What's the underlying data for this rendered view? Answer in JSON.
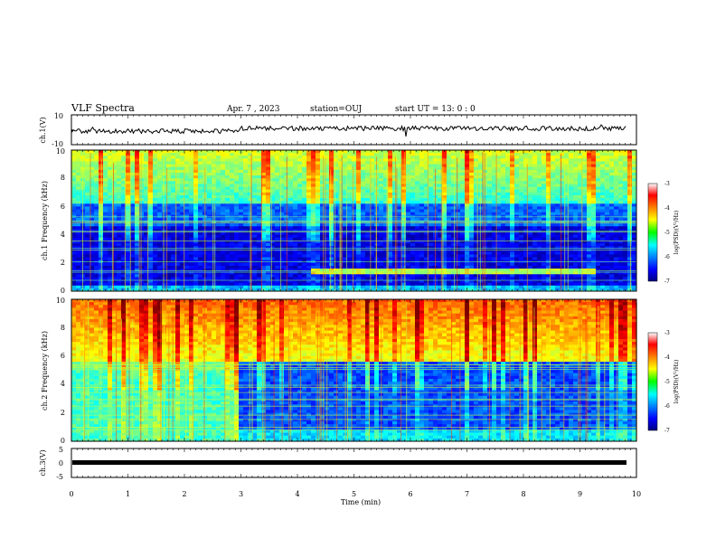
{
  "header": {
    "title": "VLF Spectra",
    "date": "Apr. 7 , 2023",
    "station": "station=OUJ",
    "start": "start UT = 13: 0 : 0"
  },
  "chart_data": [
    {
      "type": "line",
      "panel": "ch1-waveform",
      "ylabel": "ch.1(V)",
      "ylim": [
        -10,
        10
      ],
      "yticks": [
        "10",
        "-10"
      ],
      "xlim": [
        0,
        10
      ],
      "series": [
        {
          "x": [
            0,
            10
          ],
          "values": [
            0,
            0
          ]
        }
      ]
    },
    {
      "type": "heatmap",
      "panel": "ch1-spectrogram",
      "ylabel": "ch.1 Frequency (kHz)",
      "ylim": [
        0,
        10
      ],
      "yticks": [
        "0",
        "2",
        "4",
        "6",
        "8",
        "10"
      ],
      "xlim": [
        0,
        10
      ],
      "colorbar": {
        "label": "log(PSD)(V²/Hz)",
        "range": [
          -7,
          -3
        ],
        "ticks": [
          "-3",
          "-4",
          "-5",
          "-6",
          "-7"
        ]
      }
    },
    {
      "type": "heatmap",
      "panel": "ch2-spectrogram",
      "ylabel": "ch.2 Frequency (kHz)",
      "ylim": [
        0,
        10
      ],
      "yticks": [
        "0",
        "2",
        "4",
        "6",
        "8",
        "10"
      ],
      "xlim": [
        0,
        10
      ],
      "colorbar": {
        "label": "log(PSD)(V²/Hz)",
        "range": [
          -7,
          -3
        ],
        "ticks": [
          "-3",
          "-4",
          "-5",
          "-6",
          "-7"
        ]
      }
    },
    {
      "type": "line",
      "panel": "ch3-waveform",
      "ylabel": "ch.3(V)",
      "ylim": [
        -5,
        5
      ],
      "yticks": [
        "5",
        "0",
        "-5"
      ],
      "xlim": [
        0,
        10
      ],
      "series": [
        {
          "x": [
            0,
            10
          ],
          "values": [
            0,
            0
          ]
        }
      ]
    }
  ],
  "xaxis": {
    "label": "Time (min)",
    "ticks": [
      "0",
      "1",
      "2",
      "3",
      "4",
      "5",
      "6",
      "7",
      "8",
      "9",
      "10"
    ]
  },
  "colors": {
    "low": "#00007f",
    "mid": "#00ff00",
    "high": "#ff0000"
  }
}
